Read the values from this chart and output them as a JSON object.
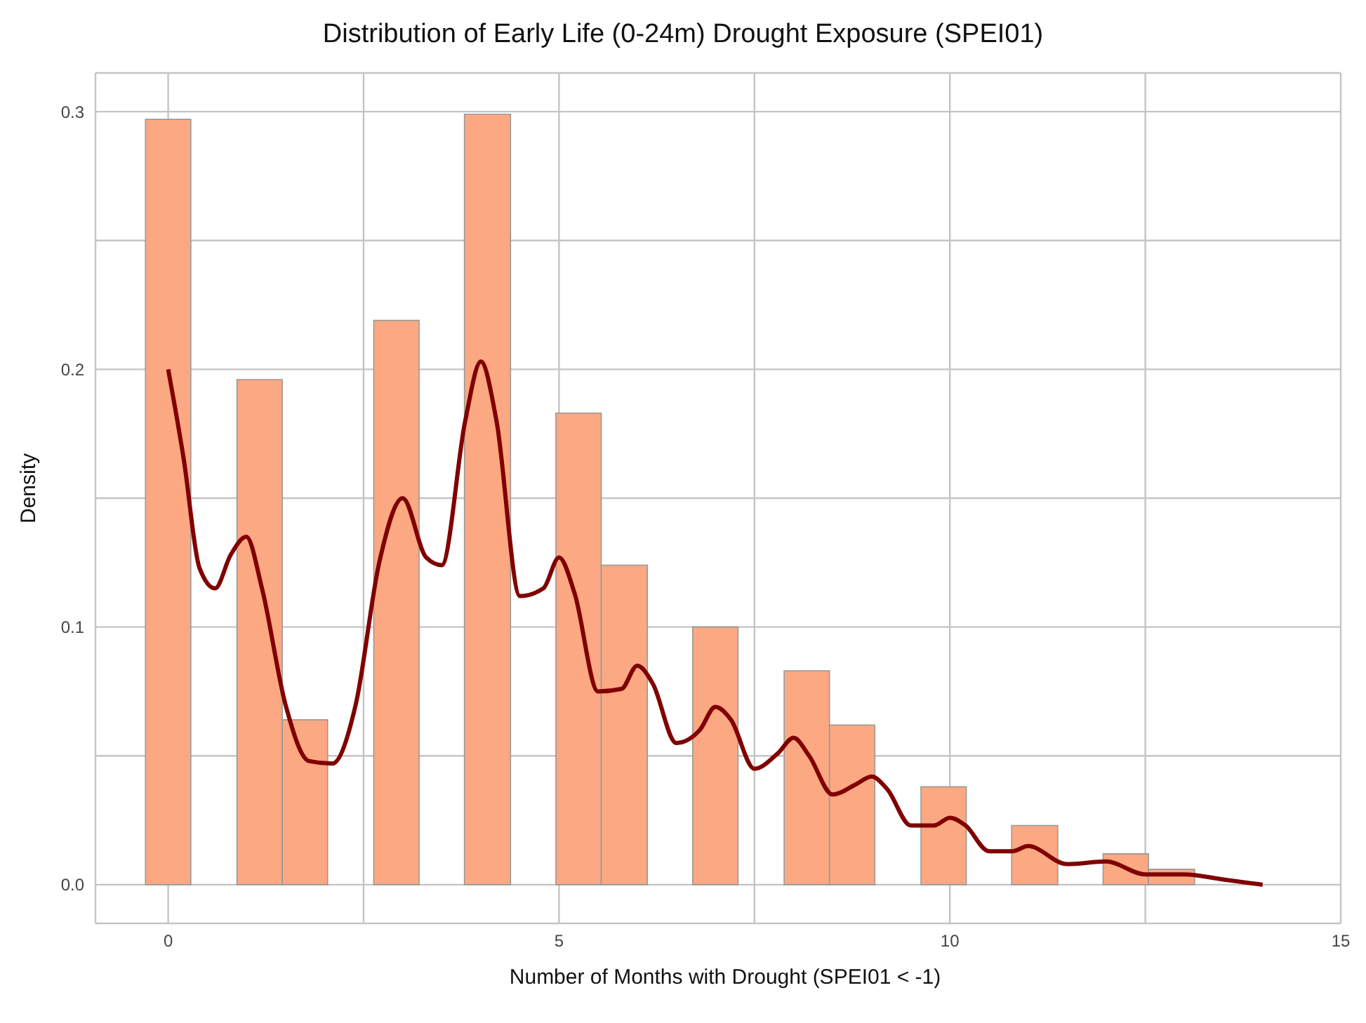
{
  "chart_data": {
    "type": "histogram",
    "title": "Distribution of Early Life (0-24m) Drought Exposure (SPEI01)",
    "xlabel": "Number of Months with Drought (SPEI01 < -1)",
    "ylabel": "Density",
    "bins": [
      -0.29,
      0.29,
      0.88,
      1.46,
      2.04,
      2.63,
      3.21,
      3.79,
      4.38,
      4.96,
      5.54,
      6.13,
      6.71,
      7.29,
      7.88,
      8.46,
      9.04,
      9.63,
      10.21,
      10.79,
      11.38,
      11.96,
      12.54,
      13.13
    ],
    "values": [
      0.297,
      0,
      0.196,
      0.064,
      0,
      0.219,
      0,
      0.299,
      0,
      0.183,
      0.124,
      0,
      0.1,
      0,
      0.083,
      0.062,
      0,
      0.038,
      0,
      0.023,
      0,
      0.012,
      0.006
    ],
    "color": "#fca882",
    "series": [
      {
        "type": "line",
        "color": "#800000",
        "x": [
          0,
          0.2,
          0.4,
          0.6,
          0.8,
          1,
          1.2,
          1.5,
          1.8,
          2.1,
          2.4,
          2.7,
          3,
          3.3,
          3.5,
          3.8,
          4,
          4.2,
          4.5,
          4.8,
          5,
          5.2,
          5.5,
          5.8,
          6,
          6.2,
          6.5,
          6.8,
          7,
          7.2,
          7.5,
          7.8,
          8,
          8.2,
          8.5,
          8.8,
          9,
          9.2,
          9.5,
          9.8,
          10,
          10.2,
          10.5,
          10.8,
          11,
          11.5,
          12,
          12.5,
          13,
          13.5,
          14
        ],
        "values": [
          0.2,
          0.165,
          0.123,
          0.115,
          0.128,
          0.135,
          0.115,
          0.07,
          0.048,
          0.047,
          0.07,
          0.125,
          0.15,
          0.127,
          0.124,
          0.18,
          0.203,
          0.18,
          0.112,
          0.115,
          0.127,
          0.113,
          0.075,
          0.076,
          0.085,
          0.078,
          0.055,
          0.06,
          0.069,
          0.064,
          0.045,
          0.051,
          0.057,
          0.05,
          0.035,
          0.039,
          0.042,
          0.037,
          0.023,
          0.023,
          0.026,
          0.023,
          0.013,
          0.013,
          0.015,
          0.008,
          0.009,
          0.004,
          0.004,
          0.002,
          0
        ]
      }
    ],
    "xlim": [
      -0.93,
      15
    ],
    "ylim": [
      -0.015,
      0.315
    ],
    "xticks": [
      0,
      {
        "value": 2.5,
        "label": null
      },
      5,
      {
        "value": 7.5,
        "label": null
      },
      10,
      {
        "value": 12.5,
        "label": null
      },
      15
    ],
    "yticks": [
      {
        "value": 0,
        "label": "0.0"
      },
      {
        "value": 0.05,
        "label": null
      },
      0.1,
      {
        "value": 0.15,
        "label": null
      },
      0.2,
      {
        "value": 0.25,
        "label": null
      },
      0.3
    ],
    "grid": true
  }
}
